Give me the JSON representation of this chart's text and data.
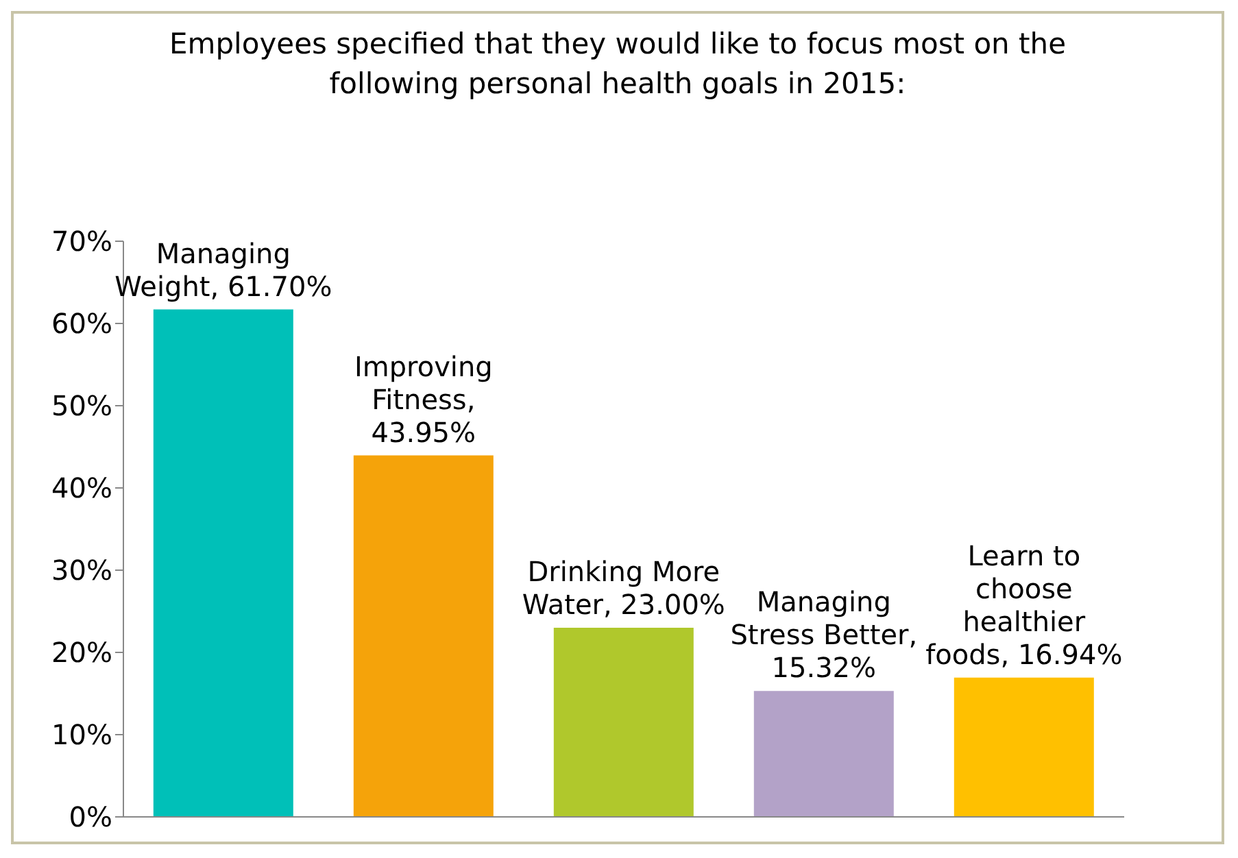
{
  "chart_data": {
    "type": "bar",
    "title": "Employees specified that they would like to focus most on the following personal health goals in 2015:",
    "categories": [
      null,
      null,
      null,
      null,
      null
    ],
    "values": [
      61.7,
      43.95,
      23,
      15.32,
      16.94
    ],
    "colors": [
      "#00c0b8",
      "#f5a30a",
      "#b0c82c",
      "#b3a2c8",
      "#ffc000"
    ],
    "value_labels": [
      "Managing Weight, 61.70%",
      "Improving Fitness, 43.95%",
      "Drinking More Water, 23.00%",
      "Managing Stress Better, 15.32%",
      "Learn to choose healthier foods, 16.94%"
    ],
    "ylim": [
      0,
      70
    ],
    "yticks": [
      {
        "value": 0,
        "label": "0%"
      },
      {
        "value": 10,
        "label": "10%"
      },
      {
        "value": 20,
        "label": "20%"
      },
      {
        "value": 30,
        "label": "30%"
      },
      {
        "value": 40,
        "label": "40%"
      },
      {
        "value": 50,
        "label": "50%"
      },
      {
        "value": 60,
        "label": "60%"
      },
      {
        "value": 70,
        "label": "70%"
      }
    ],
    "grid": false,
    "legend": false
  }
}
